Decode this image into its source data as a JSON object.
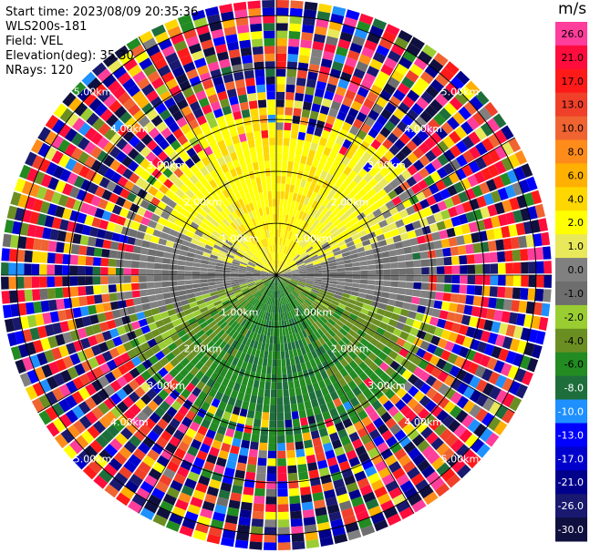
{
  "header": {
    "start_time": "Start time: 2023/08/09 20:35:36",
    "instrument": "WLS200s-181",
    "field": "Field: VEL",
    "elevation": "Elevation(deg): 35.30",
    "nrays": "NRays: 120"
  },
  "colorbar": {
    "unit": "m/s",
    "bins": [
      {
        "label": "26.0",
        "color": "#ff3d9a"
      },
      {
        "label": "21.0",
        "color": "#ff0d3d"
      },
      {
        "label": "17.0",
        "color": "#ff1a1a"
      },
      {
        "label": "13.0",
        "color": "#f0402a"
      },
      {
        "label": "10.0",
        "color": "#f06432"
      },
      {
        "label": "8.0",
        "color": "#ff8c1a"
      },
      {
        "label": "6.0",
        "color": "#ffb000"
      },
      {
        "label": "4.0",
        "color": "#ffd700"
      },
      {
        "label": "2.0",
        "color": "#ffff00"
      },
      {
        "label": "1.0",
        "color": "#e8e85a"
      },
      {
        "label": "0.0",
        "color": "#808080"
      },
      {
        "label": "-1.0",
        "color": "#6e6e6e"
      },
      {
        "label": "-2.0",
        "color": "#9acd32"
      },
      {
        "label": "-4.0",
        "color": "#6b8e23"
      },
      {
        "label": "-6.0",
        "color": "#228b22"
      },
      {
        "label": "-8.0",
        "color": "#1e6e3c"
      },
      {
        "label": "-10.0",
        "color": "#1e90ff"
      },
      {
        "label": "-13.0",
        "color": "#0000ff"
      },
      {
        "label": "-17.0",
        "color": "#0000cd"
      },
      {
        "label": "-21.0",
        "color": "#00008b"
      },
      {
        "label": "-26.0",
        "color": "#191970"
      },
      {
        "label": "-30.0",
        "color": "#101040"
      }
    ]
  },
  "chart_data": {
    "type": "heatmap",
    "projection": "polar-ppi",
    "field": "VEL",
    "nrays": 120,
    "range_rings": [
      {
        "label": "1.00km",
        "range_km": 1.0
      },
      {
        "label": "2.00km",
        "range_km": 2.0
      },
      {
        "label": "3.00km",
        "range_km": 3.0
      },
      {
        "label": "4.00km",
        "range_km": 4.0
      },
      {
        "label": "5.00km",
        "range_km": 5.0
      }
    ],
    "max_range_km": 5.3,
    "spoke_angles_deg": [
      0,
      30,
      60,
      90,
      120,
      150,
      180,
      210,
      240,
      270,
      300,
      330
    ],
    "velocity_pattern": {
      "near_north": 2.0,
      "near_south": -6.0,
      "near_east_west": 0.0,
      "noise_beyond_km": 3.2
    }
  }
}
